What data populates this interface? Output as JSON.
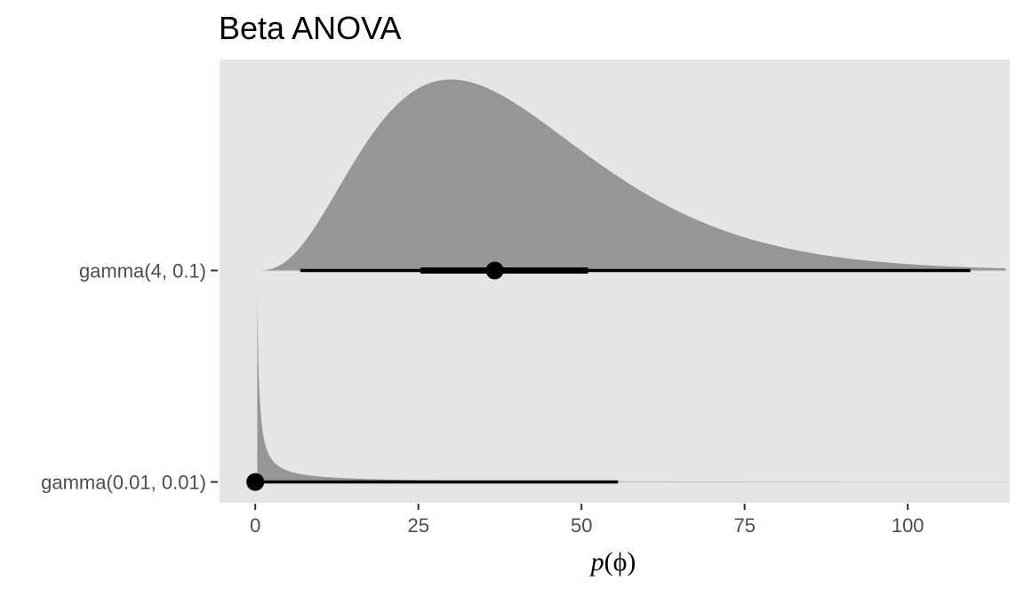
{
  "chart_data": {
    "type": "area",
    "title": "Beta ANOVA",
    "xlabel": "p(ϕ)",
    "xlabel_parts": [
      "p",
      "(",
      "ϕ",
      ")"
    ],
    "ylabel": "",
    "xlim": [
      -11,
      115
    ],
    "x_ticks": [
      0,
      25,
      50,
      75,
      100
    ],
    "x_tick_labels": [
      "0",
      "25",
      "50",
      "75",
      "100"
    ],
    "grid": false,
    "legend": "none",
    "colors": {
      "panel": "#e5e5e5",
      "density": "#969696",
      "interval": "#000000",
      "tick_text": "#4d4d4d"
    },
    "series": [
      {
        "name": "gamma(4, 0.1)",
        "distribution": {
          "family": "gamma",
          "shape": 4,
          "rate": 0.1
        },
        "point_estimate": 36.7,
        "interval_66": [
          25.3,
          51.0
        ],
        "interval_95": [
          6.9,
          109.6
        ]
      },
      {
        "name": "gamma(0.01, 0.01)",
        "distribution": {
          "family": "gamma",
          "shape": 0.01,
          "rate": 0.01
        },
        "point_estimate": 0,
        "interval_66": [
          0,
          0
        ],
        "interval_95": [
          0,
          55.6
        ]
      }
    ]
  }
}
